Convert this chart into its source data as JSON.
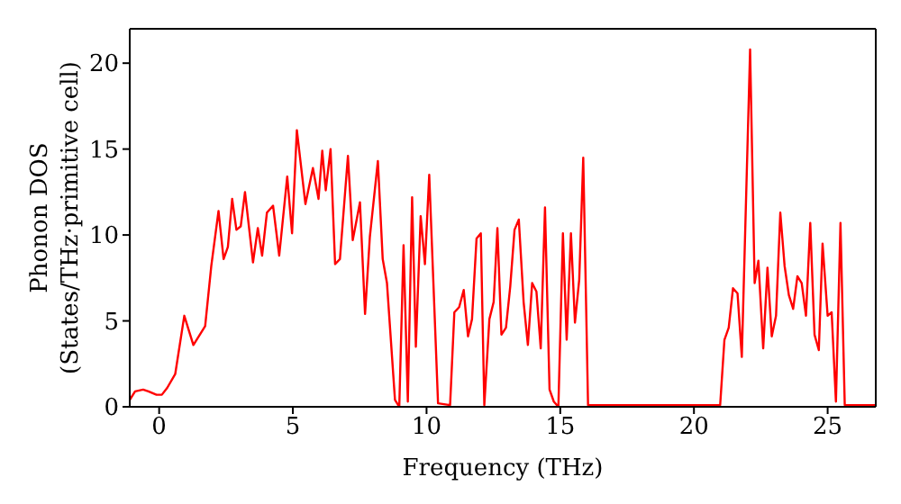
{
  "chart_data": {
    "type": "line",
    "xlabel": "Frequency (THz)",
    "ylabel": "Phonon DOS\n(States/THz·primitive cell)",
    "xlim": [
      -1.1,
      26.8
    ],
    "ylim": [
      0,
      22
    ],
    "xticks": [
      0,
      5,
      10,
      15,
      20,
      25
    ],
    "yticks": [
      0,
      5,
      10,
      15,
      20
    ],
    "marker": "none",
    "line_style": "solid",
    "series": [
      {
        "color": "#ff0000",
        "x": [
          -1.1,
          -0.9,
          -0.6,
          -0.4,
          -0.1,
          0.1,
          0.3,
          0.6,
          0.94,
          1.28,
          1.72,
          1.95,
          2.22,
          2.41,
          2.57,
          2.73,
          2.89,
          3.05,
          3.21,
          3.51,
          3.69,
          3.85,
          4.03,
          4.26,
          4.49,
          4.79,
          4.97,
          5.15,
          5.47,
          5.75,
          5.96,
          6.1,
          6.23,
          6.41,
          6.58,
          6.76,
          7.06,
          7.24,
          7.51,
          7.7,
          7.88,
          8.18,
          8.36,
          8.52,
          8.82,
          8.98,
          9.14,
          9.3,
          9.46,
          9.6,
          9.78,
          9.94,
          10.1,
          10.43,
          10.88,
          11.04,
          11.22,
          11.39,
          11.55,
          11.7,
          11.87,
          12.03,
          12.16,
          12.35,
          12.51,
          12.65,
          12.8,
          12.97,
          13.13,
          13.29,
          13.45,
          13.63,
          13.79,
          13.95,
          14.11,
          14.27,
          14.43,
          14.6,
          14.76,
          14.93,
          15.1,
          15.24,
          15.4,
          15.55,
          15.71,
          15.86,
          16.04,
          20.98,
          21.14,
          21.3,
          21.46,
          21.63,
          21.79,
          22.1,
          22.27,
          22.41,
          22.59,
          22.75,
          22.91,
          23.07,
          23.23,
          23.39,
          23.55,
          23.71,
          23.87,
          24.03,
          24.19,
          24.35,
          24.51,
          24.67,
          24.81,
          25.0,
          25.15,
          25.31,
          25.48,
          25.64,
          26.8
        ],
        "values": [
          0.4,
          0.9,
          1.0,
          0.9,
          0.7,
          0.7,
          1.1,
          1.9,
          5.3,
          3.6,
          4.7,
          8.2,
          11.4,
          8.6,
          9.3,
          12.1,
          10.3,
          10.5,
          12.5,
          8.4,
          10.4,
          8.8,
          11.3,
          11.7,
          8.8,
          13.4,
          10.1,
          16.1,
          11.8,
          13.9,
          12.1,
          14.9,
          12.6,
          15.0,
          8.3,
          8.6,
          14.6,
          9.7,
          11.9,
          5.4,
          9.9,
          14.3,
          8.6,
          7.2,
          0.4,
          0,
          9.4,
          0.3,
          12.2,
          3.5,
          11.1,
          8.3,
          13.5,
          0.2,
          0.1,
          5.5,
          5.8,
          6.8,
          4.1,
          5.1,
          9.8,
          10.1,
          0.1,
          5.1,
          6.1,
          10.4,
          4.2,
          4.6,
          7.0,
          10.3,
          10.9,
          6.1,
          3.6,
          7.2,
          6.7,
          3.4,
          11.6,
          1.0,
          0.3,
          0,
          10.1,
          3.9,
          10.1,
          4.9,
          7.4,
          14.5,
          0.1,
          0.1,
          3.9,
          4.6,
          6.9,
          6.6,
          2.9,
          20.8,
          7.2,
          8.5,
          3.4,
          8.1,
          4.1,
          5.3,
          11.3,
          8.2,
          6.5,
          5.7,
          7.6,
          7.2,
          5.3,
          10.7,
          4.2,
          3.3,
          9.5,
          5.3,
          5.5,
          0.3,
          10.7,
          0.1,
          0.1
        ]
      }
    ]
  }
}
